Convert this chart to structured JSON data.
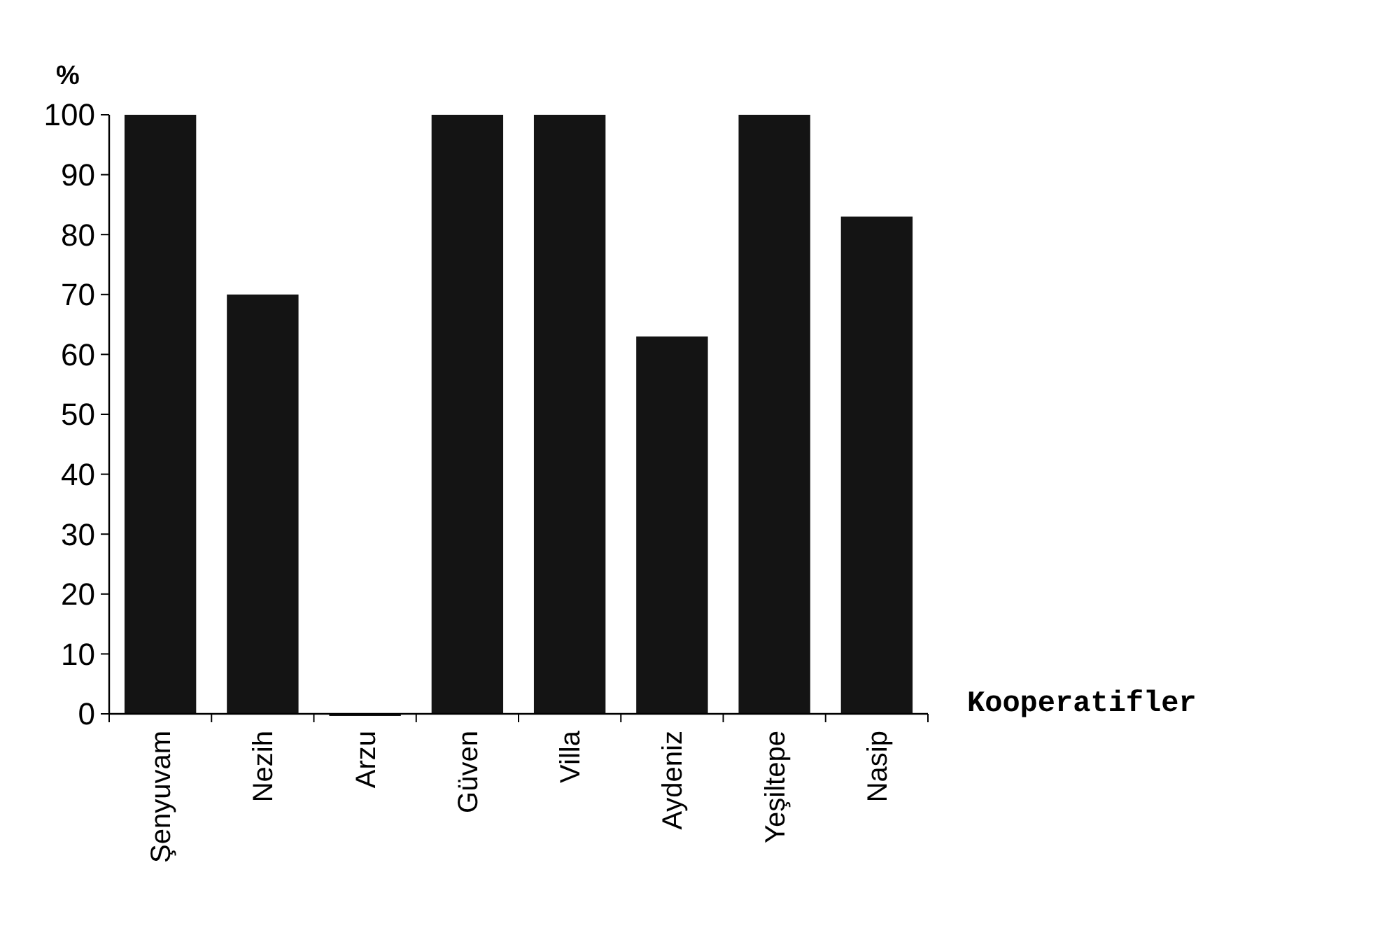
{
  "chart_data": {
    "type": "bar",
    "ylabel": "%",
    "xlabel": "Kooperatifler",
    "categories": [
      "Şenyuvam",
      "Nezih",
      "Arzu",
      "Güven",
      "Villa",
      "Aydeniz",
      "Yeşiltepe",
      "Nasip"
    ],
    "values": [
      100,
      70,
      0,
      100,
      100,
      63,
      100,
      83
    ],
    "color": "#141414",
    "ylim": [
      0,
      100
    ],
    "yticks": [
      0,
      10,
      20,
      30,
      40,
      50,
      60,
      70,
      80,
      90,
      100
    ],
    "grid": false
  }
}
